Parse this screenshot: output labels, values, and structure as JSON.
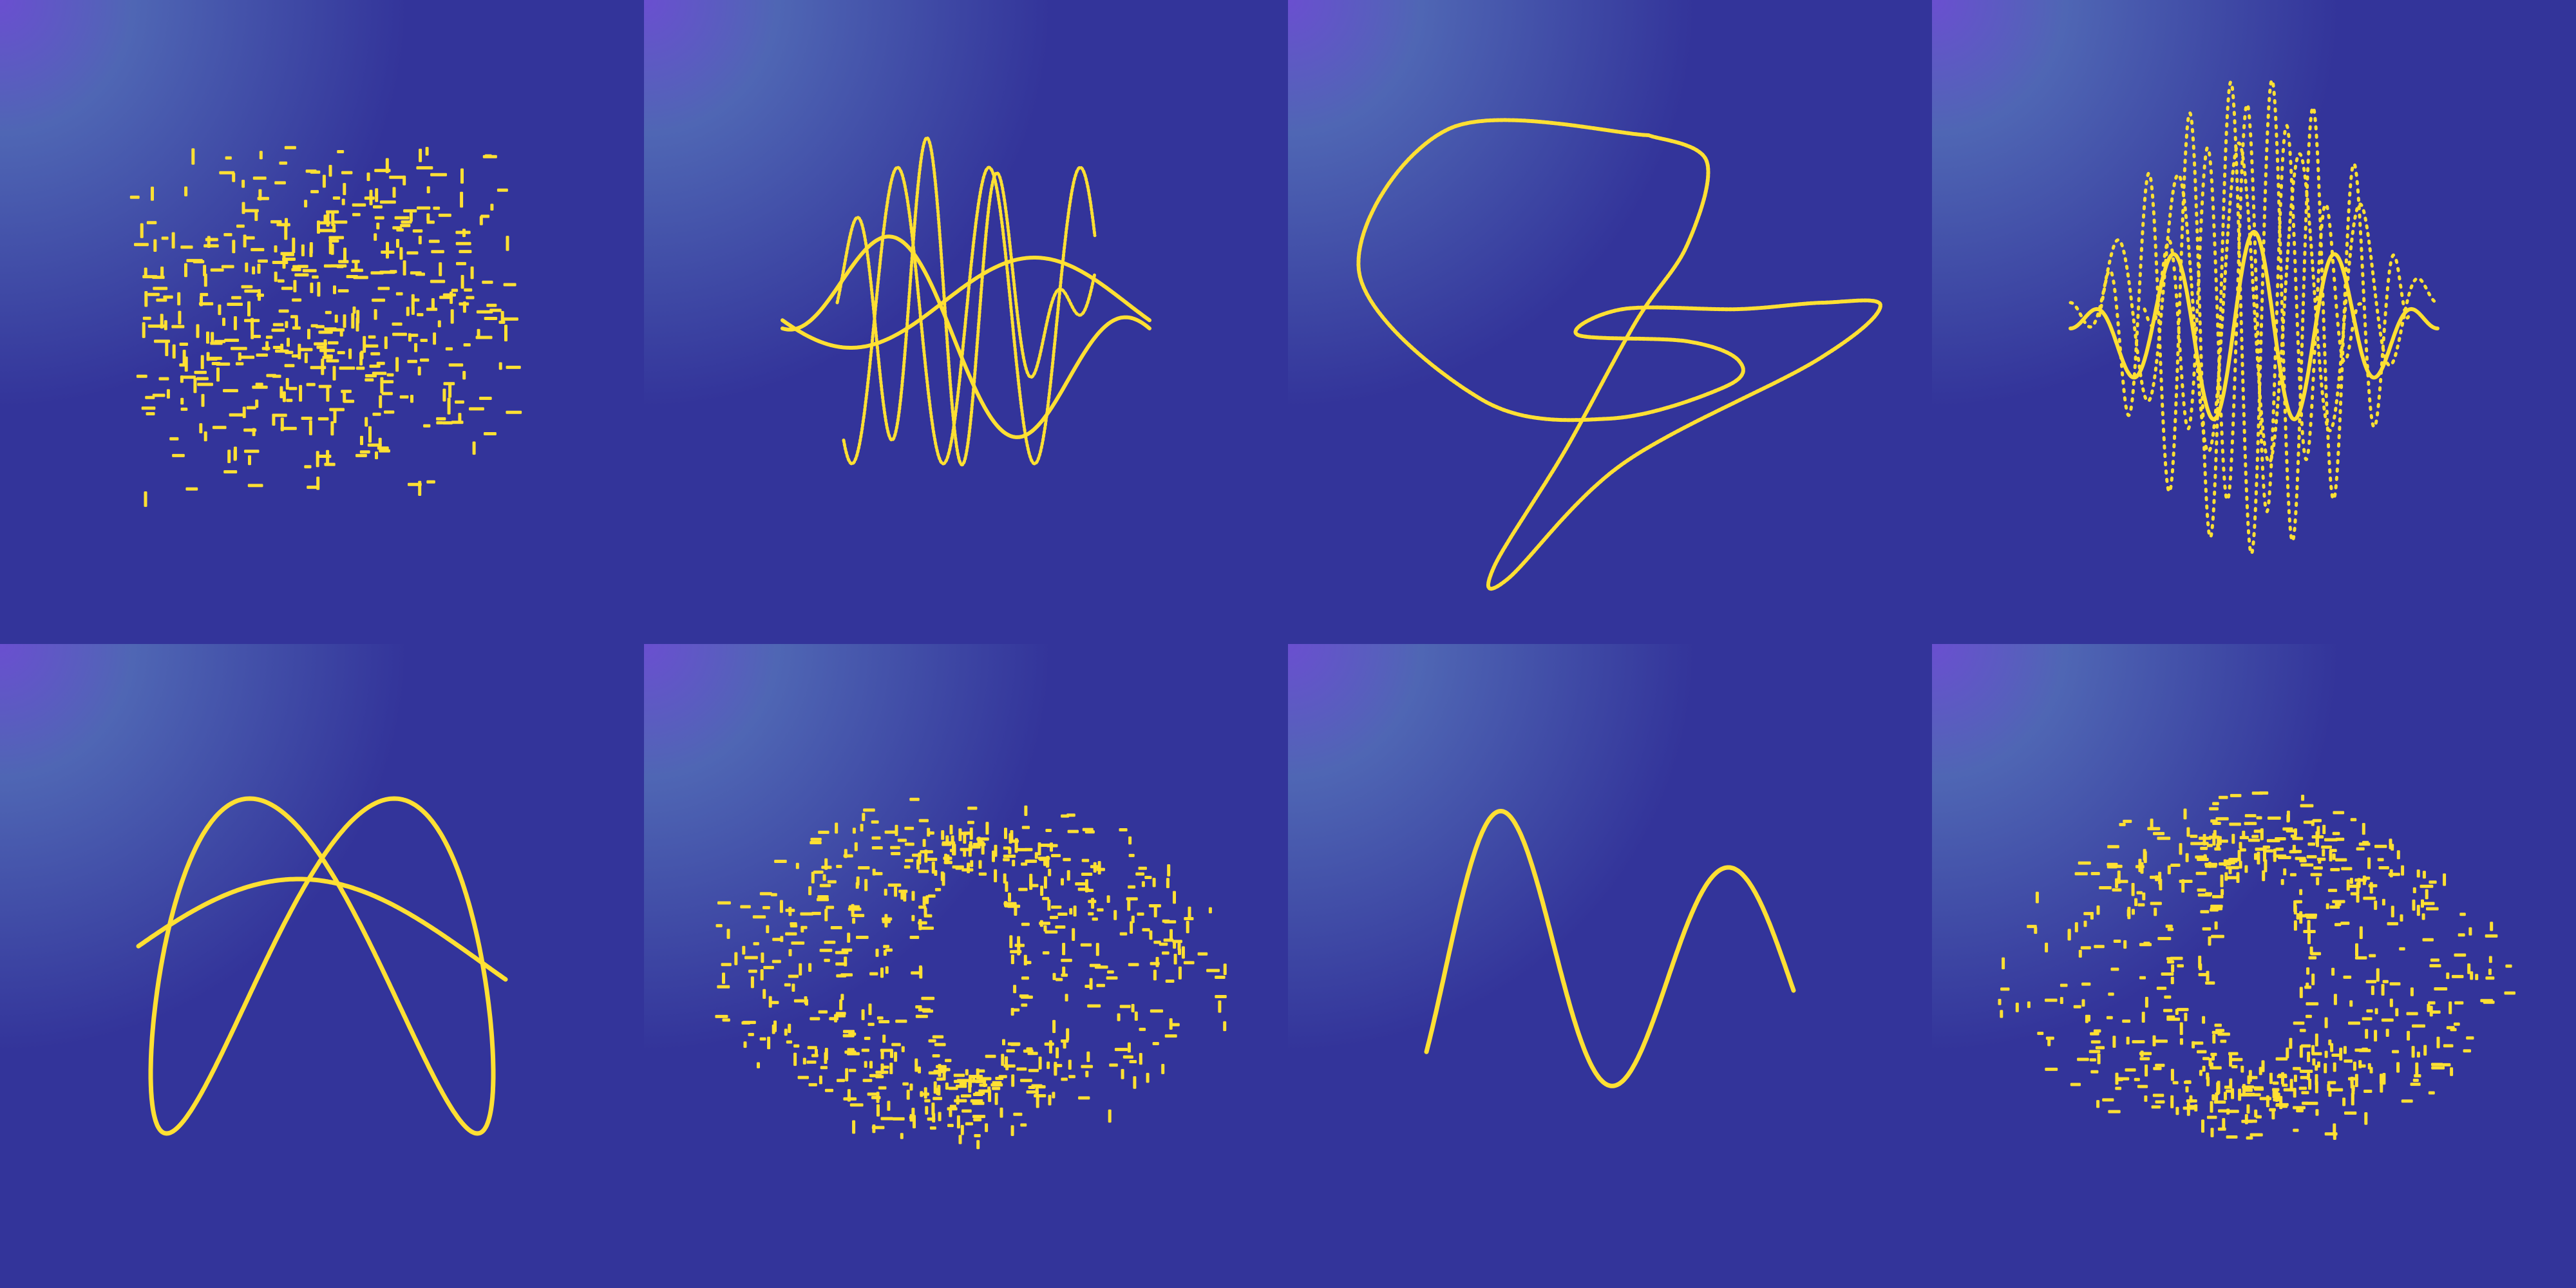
{
  "colors": {
    "gradient_corner": "#6a4fd0",
    "gradient_highlight": "#4f66b4",
    "gradient_base": "#33349a",
    "stroke": "#ffe033"
  },
  "tiles": [
    {
      "id": "scatter-cloud",
      "kind": "cloud",
      "seed": 7
    },
    {
      "id": "wave-bundle",
      "kind": "waves"
    },
    {
      "id": "loop-curve",
      "kind": "loop"
    },
    {
      "id": "dotted-wave-stack",
      "kind": "dotwaves"
    },
    {
      "id": "lissajous-knot",
      "kind": "lissajous"
    },
    {
      "id": "dotted-sphere",
      "kind": "sphere",
      "seed": 11
    },
    {
      "id": "sine-wave",
      "kind": "sine"
    },
    {
      "id": "dotted-globe",
      "kind": "sphere",
      "seed": 23
    }
  ]
}
